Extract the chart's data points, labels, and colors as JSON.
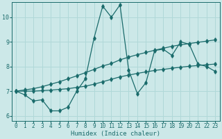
{
  "xlabel": "Humidex (Indice chaleur)",
  "bg_color": "#cce8e8",
  "grid_color": "#b0d8d8",
  "line_color": "#1a6b6b",
  "xlim": [
    -0.5,
    23.5
  ],
  "ylim": [
    5.8,
    10.6
  ],
  "xticks": [
    0,
    1,
    2,
    3,
    4,
    5,
    6,
    7,
    8,
    9,
    10,
    11,
    12,
    13,
    14,
    15,
    16,
    17,
    18,
    19,
    20,
    21,
    22,
    23
  ],
  "yticks": [
    6,
    7,
    8,
    9,
    10
  ],
  "series": [
    [
      7.0,
      6.85,
      6.6,
      6.65,
      6.2,
      6.2,
      6.35,
      7.0,
      7.5,
      9.15,
      10.45,
      10.0,
      10.5,
      7.85,
      6.9,
      7.35,
      8.65,
      8.7,
      8.45,
      9.0,
      8.9,
      8.1,
      8.0,
      7.8
    ],
    [
      7.0,
      7.0,
      7.0,
      7.02,
      7.04,
      7.07,
      7.1,
      7.15,
      7.2,
      7.28,
      7.38,
      7.48,
      7.58,
      7.65,
      7.72,
      7.78,
      7.84,
      7.88,
      7.93,
      7.97,
      8.01,
      8.04,
      8.07,
      8.1
    ],
    [
      7.0,
      7.05,
      7.1,
      7.18,
      7.28,
      7.38,
      7.5,
      7.62,
      7.75,
      7.88,
      8.02,
      8.12,
      8.27,
      8.38,
      8.48,
      8.57,
      8.66,
      8.74,
      8.82,
      8.88,
      8.93,
      8.98,
      9.03,
      9.08
    ]
  ],
  "marker": "d",
  "marker_size": 2.8,
  "line_width": 0.9,
  "tick_fontsize": 5.5,
  "xlabel_fontsize": 6.5
}
